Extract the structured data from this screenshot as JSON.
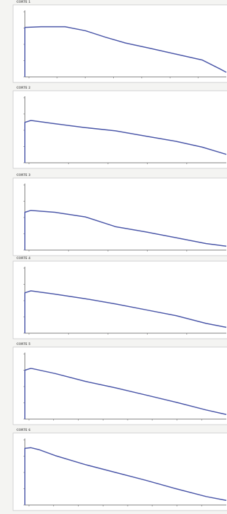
{
  "chart_data": [
    {
      "type": "line",
      "title": "CORTE 1",
      "ylim": [
        0,
        1
      ],
      "yticks": [
        "",
        "",
        "",
        "",
        ""
      ],
      "xticks": [
        "",
        "",
        "",
        "",
        "",
        "",
        ""
      ],
      "grid": false,
      "series": [
        {
          "x": [
            0,
            0.08,
            0.2,
            0.3,
            0.4,
            0.5,
            0.62,
            0.75,
            0.88,
            0.97,
            1.0
          ],
          "y": [
            0.76,
            0.77,
            0.77,
            0.71,
            0.61,
            0.52,
            0.44,
            0.35,
            0.26,
            0.12,
            0.07
          ]
        }
      ]
    },
    {
      "type": "line",
      "title": "CORTE 2",
      "ylim": [
        0,
        1
      ],
      "yticks": [
        "",
        "",
        "",
        "",
        ""
      ],
      "xticks": [
        "",
        "",
        "",
        "",
        ""
      ],
      "grid": false,
      "series": [
        {
          "x": [
            0,
            0.03,
            0.15,
            0.3,
            0.45,
            0.6,
            0.75,
            0.88,
            1.0
          ],
          "y": [
            0.62,
            0.65,
            0.6,
            0.54,
            0.49,
            0.41,
            0.33,
            0.24,
            0.13
          ]
        }
      ]
    },
    {
      "type": "line",
      "title": "CORTE 3",
      "ylim": [
        0,
        1
      ],
      "yticks": [
        "",
        "",
        "",
        "",
        ""
      ],
      "xticks": [
        "",
        "",
        "",
        "",
        ""
      ],
      "grid": false,
      "series": [
        {
          "x": [
            0,
            0.03,
            0.15,
            0.3,
            0.45,
            0.6,
            0.75,
            0.9,
            1.0
          ],
          "y": [
            0.58,
            0.61,
            0.58,
            0.51,
            0.36,
            0.28,
            0.19,
            0.1,
            0.06
          ]
        }
      ]
    },
    {
      "type": "line",
      "title": "CORTE 4",
      "ylim": [
        0,
        1
      ],
      "yticks": [
        "",
        "",
        "",
        "",
        ""
      ],
      "xticks": [
        "",
        "",
        "",
        "",
        ""
      ],
      "grid": false,
      "series": [
        {
          "x": [
            0,
            0.03,
            0.15,
            0.3,
            0.45,
            0.6,
            0.75,
            0.9,
            1.0
          ],
          "y": [
            0.62,
            0.65,
            0.6,
            0.53,
            0.45,
            0.36,
            0.27,
            0.15,
            0.09
          ]
        }
      ]
    },
    {
      "type": "line",
      "title": "CORTE 5",
      "ylim": [
        0,
        1
      ],
      "yticks": [
        "",
        "",
        "",
        "",
        ""
      ],
      "xticks": [
        "",
        "",
        "",
        "",
        "",
        "",
        "",
        ""
      ],
      "grid": false,
      "series": [
        {
          "x": [
            0,
            0.03,
            0.15,
            0.3,
            0.45,
            0.6,
            0.75,
            0.9,
            1.0
          ],
          "y": [
            0.75,
            0.78,
            0.7,
            0.58,
            0.48,
            0.37,
            0.26,
            0.14,
            0.07
          ]
        }
      ]
    },
    {
      "type": "line",
      "title": "CORTE 6",
      "ylim": [
        0,
        1
      ],
      "yticks": [
        "",
        "",
        "",
        "",
        ""
      ],
      "xticks": [
        "",
        "",
        "",
        "",
        "",
        "",
        "",
        ""
      ],
      "grid": false,
      "series": [
        {
          "x": [
            0,
            0.03,
            0.07,
            0.15,
            0.3,
            0.45,
            0.6,
            0.75,
            0.9,
            1.0
          ],
          "y": [
            0.87,
            0.88,
            0.85,
            0.76,
            0.62,
            0.5,
            0.38,
            0.25,
            0.13,
            0.07
          ]
        }
      ]
    }
  ]
}
